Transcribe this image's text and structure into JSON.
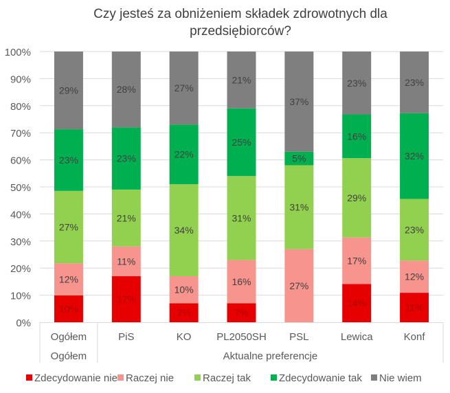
{
  "chart_data": {
    "type": "bar",
    "stacked": true,
    "title": "Czy jesteś za obniżeniem składek zdrowotnych dla przedsiębiorców?",
    "categories": [
      "Ogółem",
      "PiS",
      "KO",
      "PL2050SH",
      "PSL",
      "Lewica",
      "Konf"
    ],
    "category_groups": [
      {
        "label": "Ogółem",
        "categories": [
          "Ogółem"
        ]
      },
      {
        "label": "Aktualne preferencje",
        "categories": [
          "PiS",
          "KO",
          "PL2050SH",
          "PSL",
          "Lewica",
          "Konf"
        ]
      }
    ],
    "series": [
      {
        "name": "Zdecydowanie nie",
        "color": "#e60000",
        "label_color": "#b00000",
        "values": [
          10,
          17,
          7,
          7,
          0,
          14,
          11
        ]
      },
      {
        "name": "Raczej nie",
        "color": "#f7948e",
        "label_color": "#404040",
        "values": [
          12,
          11,
          10,
          16,
          27,
          17,
          12
        ]
      },
      {
        "name": "Raczej tak",
        "color": "#92d050",
        "label_color": "#404040",
        "values": [
          27,
          21,
          34,
          31,
          31,
          29,
          23
        ]
      },
      {
        "name": "Zdecydowanie tak",
        "color": "#00b050",
        "label_color": "#404040",
        "values": [
          23,
          23,
          22,
          25,
          5,
          16,
          32
        ]
      },
      {
        "name": "Nie wiem",
        "color": "#7f7f7f",
        "label_color": "#404040",
        "values": [
          29,
          28,
          27,
          21,
          37,
          23,
          23
        ]
      }
    ],
    "ylim": [
      0,
      100
    ],
    "yticks": [
      "0%",
      "10%",
      "20%",
      "30%",
      "40%",
      "50%",
      "60%",
      "70%",
      "80%",
      "90%",
      "100%"
    ],
    "grid": true,
    "legend": "bottom"
  }
}
